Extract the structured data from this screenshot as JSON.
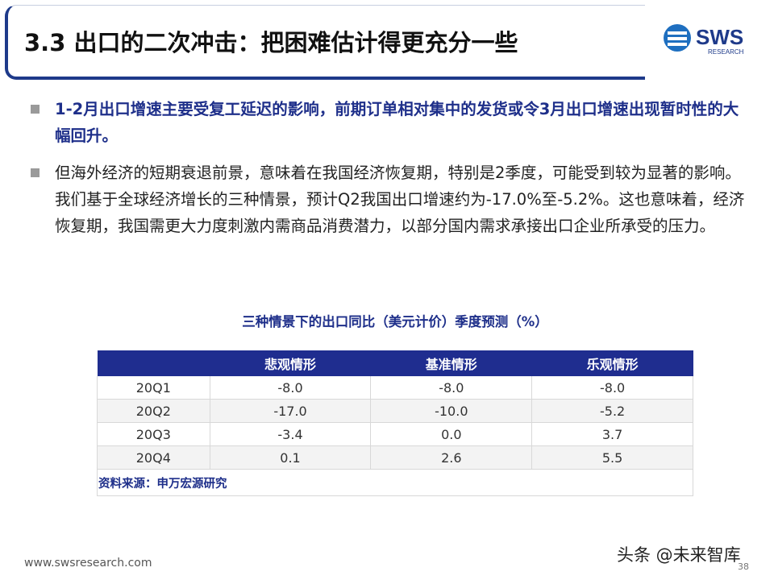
{
  "header": {
    "title": "3.3 出口的二次冲击：把困难估计得更充分一些",
    "logo": "SWS",
    "logo_sub": "RESEARCH"
  },
  "bullets": [
    "1-2月出口增速主要受复工延迟的影响，前期订单相对集中的发货或令3月出口增速出现暂时性的大幅回升。",
    "但海外经济的短期衰退前景，意味着在我国经济恢复期，特别是2季度，可能受到较为显著的影响。我们基于全球经济增长的三种情景，预计Q2我国出口增速约为-17.0%至-5.2%。这也意味着，经济恢复期，我国需更大力度刺激内需商品消费潜力，以部分国内需求承接出口企业所承受的压力。"
  ],
  "table": {
    "title": "三种情景下的出口同比（美元计价）季度预测（%）",
    "columns": [
      "悲观情形",
      "基准情形",
      "乐观情形"
    ],
    "rows": [
      [
        "20Q1",
        "-8.0",
        "-8.0",
        "-8.0"
      ],
      [
        "20Q2",
        "-17.0",
        "-10.0",
        "-5.2"
      ],
      [
        "20Q3",
        "-3.4",
        "0.0",
        "3.7"
      ],
      [
        "20Q4",
        "0.1",
        "2.6",
        "5.5"
      ]
    ],
    "source": "资料来源：申万宏源研究"
  },
  "footer": {
    "url": "www.swsresearch.com",
    "page": "38",
    "watermark": "头条 @未来智库"
  }
}
